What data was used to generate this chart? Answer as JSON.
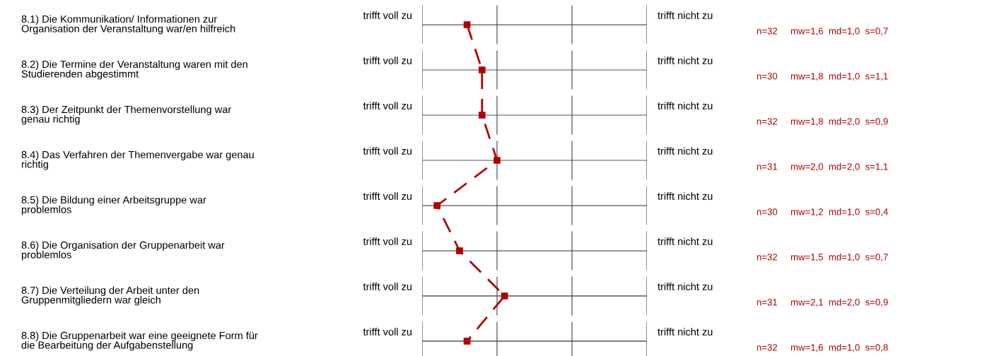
{
  "chart_data": {
    "type": "line",
    "orientation": "horizontal",
    "categories": [
      "8.1) Die Kommunikation/ Informationen zur\nOrganisation der Veranstaltung war/en hilfreich",
      "8.2) Die Termine der Veranstaltung waren mit den\nStudierenden abgestimmt",
      "8.3) Der Zeitpunkt der Themenvorstellung war\ngenau richtig",
      "8.4) Das Verfahren der Themenvergabe war genau\nrichtig",
      "8.5) Die Bildung einer Arbeitsgruppe war\nproblemlos",
      "8.6) Die Organisation der Gruppenarbeit war\nproblemlos",
      "8.7) Die Verteilung der Arbeit unter den\nGruppenmitgliedern war gleich",
      "8.8) Die Gruppenarbeit war eine geeignete Form für\ndie Bearbeitung der Aufgabenstellung"
    ],
    "series": [
      {
        "color": "#b00000",
        "values": [
          1.6,
          1.8,
          1.8,
          2.0,
          1.2,
          1.5,
          2.1,
          1.6
        ],
        "value_labels": [
          "n=32     mw=1,6  md=1,0  s=0,7",
          "n=30     mw=1,8  md=1,0  s=1,1",
          "n=32     mw=1,8  md=2,0  s=0,9",
          "n=31     mw=2,0  md=2,0  s=1,1",
          "n=30     mw=1,2  md=1,0  s=0,4",
          "n=32     mw=1,5  md=1,0  s=0,7",
          "n=31     mw=2,1  md=2,0  s=0,9",
          "n=32     mw=1,6  md=1,0  s=0,8"
        ]
      }
    ],
    "xlim": [
      1,
      4
    ],
    "tick_labels": "y",
    "grid": true,
    "marker": "square",
    "line_style": "dashed",
    "legend": false,
    "annotations": [
      "trifft voll zu",
      "trifft nicht zu"
    ]
  }
}
